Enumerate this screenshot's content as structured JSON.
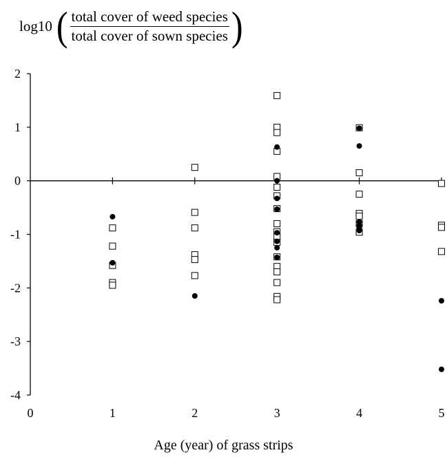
{
  "chart_data": {
    "type": "scatter",
    "xlabel": "Age (year) of grass strips",
    "ylabel": {
      "prefix": "log10",
      "numerator": "total cover of weed species",
      "denominator": "total cover of sown species"
    },
    "xlim": [
      0,
      5
    ],
    "ylim": [
      -4,
      2
    ],
    "xticks": [
      "0",
      "1",
      "2",
      "3",
      "4",
      "5"
    ],
    "yticks": [
      "2",
      "1",
      "0",
      "-1",
      "-2",
      "-3",
      "-4"
    ],
    "grid": false,
    "series": [
      {
        "marker": "open-square",
        "color": "#000000",
        "points": [
          [
            1,
            -0.88
          ],
          [
            1,
            -1.22
          ],
          [
            1,
            -1.58
          ],
          [
            1,
            -1.9
          ],
          [
            1,
            -1.95
          ],
          [
            2,
            0.25
          ],
          [
            2,
            -0.59
          ],
          [
            2,
            -0.88
          ],
          [
            2,
            -1.38
          ],
          [
            2,
            -1.47
          ],
          [
            2,
            -1.77
          ],
          [
            3,
            1.59
          ],
          [
            3,
            1.0
          ],
          [
            3,
            0.9
          ],
          [
            3,
            0.55
          ],
          [
            3,
            0.08
          ],
          [
            3,
            -0.12
          ],
          [
            3,
            -0.28
          ],
          [
            3,
            -0.52
          ],
          [
            3,
            -0.8
          ],
          [
            3,
            -0.95
          ],
          [
            3,
            -1.05
          ],
          [
            3,
            -1.15
          ],
          [
            3,
            -1.42
          ],
          [
            3,
            -1.6
          ],
          [
            3,
            -1.7
          ],
          [
            3,
            -1.9
          ],
          [
            3,
            -2.16
          ],
          [
            3,
            -2.22
          ],
          [
            4,
            0.99
          ],
          [
            4,
            0.15
          ],
          [
            4,
            -0.25
          ],
          [
            4,
            -0.61
          ],
          [
            4,
            -0.66
          ],
          [
            4,
            -0.8
          ],
          [
            4,
            -0.96
          ],
          [
            5,
            -0.05
          ],
          [
            5,
            -0.83
          ],
          [
            5,
            -0.87
          ],
          [
            5,
            -1.32
          ]
        ]
      },
      {
        "marker": "filled-circle",
        "color": "#000000",
        "points": [
          [
            1,
            -0.67
          ],
          [
            1,
            -1.53
          ],
          [
            2,
            -2.15
          ],
          [
            3,
            0.63
          ],
          [
            3,
            0.0
          ],
          [
            3,
            -0.33
          ],
          [
            3,
            -0.53
          ],
          [
            3,
            -0.97
          ],
          [
            3,
            -1.13
          ],
          [
            3,
            -1.25
          ],
          [
            3,
            -1.43
          ],
          [
            4,
            0.98
          ],
          [
            4,
            0.65
          ],
          [
            4,
            -0.77
          ],
          [
            4,
            -0.83
          ],
          [
            4,
            -0.88
          ],
          [
            4,
            -0.93
          ],
          [
            5,
            -2.24
          ],
          [
            5,
            -3.52
          ]
        ]
      }
    ]
  }
}
